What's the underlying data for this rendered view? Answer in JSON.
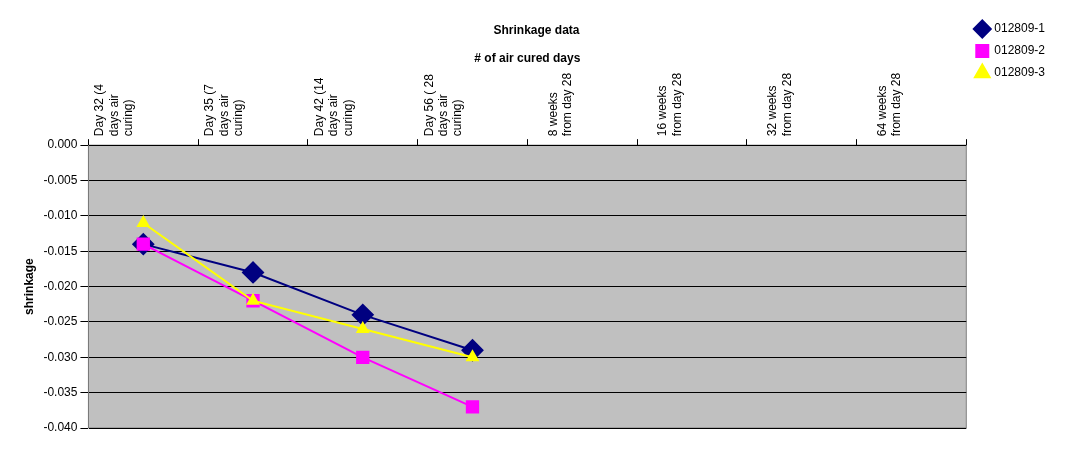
{
  "chart_data": {
    "type": "line",
    "title": "Shrinkage data",
    "xlabel": "# of air cured days",
    "ylabel": "shrinkage",
    "categories": [
      "Day 32 (4 days air curing)",
      "Day 35 (7 days air curing)",
      "Day 42 (14 days air curing)",
      "Day 56 ( 28 days air curing)",
      "8 weeks from day 28",
      "16 weeks from day 28",
      "32 weeks from day 28",
      "64 weeks from day 28"
    ],
    "series": [
      {
        "name": "012809-1",
        "color": "#000080",
        "marker": "diamond",
        "values": [
          -0.014,
          -0.018,
          -0.024,
          -0.029,
          null,
          null,
          null,
          null
        ]
      },
      {
        "name": "012809-2",
        "color": "#ff00ff",
        "marker": "square",
        "values": [
          -0.014,
          -0.022,
          -0.03,
          -0.037,
          null,
          null,
          null,
          null
        ]
      },
      {
        "name": "012809-3",
        "color": "#ffff00",
        "marker": "triangle",
        "values": [
          -0.011,
          -0.022,
          -0.026,
          -0.03,
          null,
          null,
          null,
          null
        ]
      }
    ],
    "ylim": [
      -0.04,
      0
    ],
    "yticks": [
      {
        "value": -0.04,
        "label": "-0.040"
      },
      {
        "value": -0.035,
        "label": "-0.035"
      },
      {
        "value": -0.03,
        "label": "-0.030"
      },
      {
        "value": -0.025,
        "label": "-0.025"
      },
      {
        "value": -0.02,
        "label": "-0.020"
      },
      {
        "value": -0.015,
        "label": "-0.015"
      },
      {
        "value": -0.01,
        "label": "-0.010"
      },
      {
        "value": -0.005,
        "label": "-0.005"
      },
      {
        "value": 0,
        "label": "0.000"
      }
    ],
    "grid": "y",
    "legend": "top right"
  }
}
